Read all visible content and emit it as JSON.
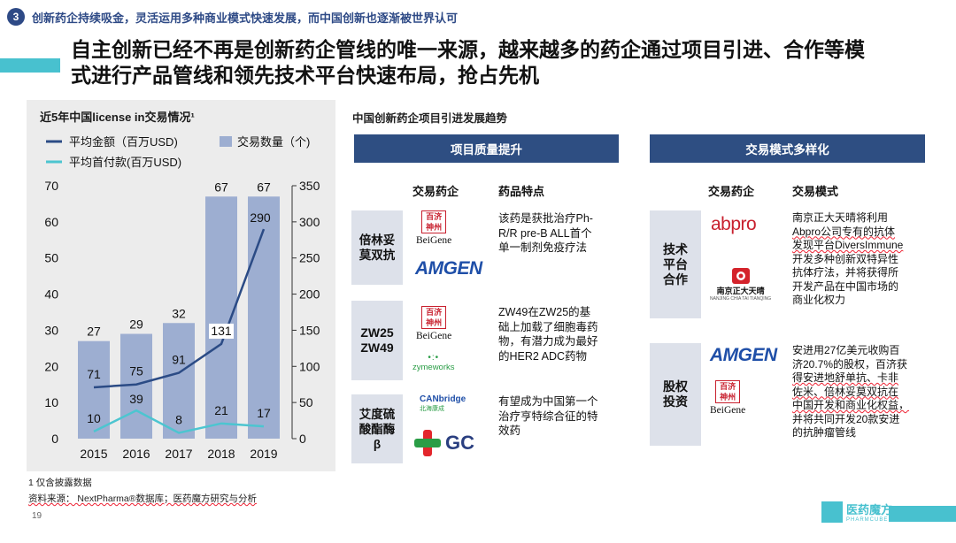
{
  "section": {
    "number": "3",
    "text": "创新药企持续吸金，灵活运用多种商业模式快速发展，而中国创新也逐渐被世界认可"
  },
  "main_title": {
    "line1": "自主创新已经不再是创新药企管线的唯一来源，越来越多的药企通过项目引进、合作等模",
    "line2": "式进行产品管线和领先技术平台快速布局，抢占先机"
  },
  "chart_data": {
    "type": "bar",
    "title": "近5年中国license in交易情况¹",
    "categories": [
      "2015",
      "2016",
      "2017",
      "2018",
      "2019"
    ],
    "ylim_left": [
      0,
      70
    ],
    "ylim_right": [
      0,
      350
    ],
    "yticks_left": [
      "0",
      "10",
      "20",
      "30",
      "40",
      "50",
      "60",
      "70"
    ],
    "yticks_right": [
      "0",
      "50",
      "100",
      "150",
      "200",
      "250",
      "300",
      "350"
    ],
    "legend": [
      "平均金额（百万USD)",
      "交易数量（个)",
      "平均首付款(百万USD)"
    ],
    "series": [
      {
        "name": "交易数量（个)",
        "type": "bar",
        "axis": "left",
        "values": [
          27,
          29,
          32,
          67,
          67
        ],
        "color": "#9daed1"
      },
      {
        "name": "平均金额（百万USD)",
        "type": "line",
        "axis": "right",
        "values": [
          71,
          75,
          91,
          131,
          290
        ],
        "color": "#2b4b85"
      },
      {
        "name": "平均首付款(百万USD)",
        "type": "line",
        "axis": "right",
        "values": [
          10,
          39,
          8,
          21,
          17
        ],
        "color": "#4cc5d0"
      }
    ],
    "note": "1 仅含披露数据",
    "source": "资料来源： NextPharma®数据库；医药魔方研究与分析"
  },
  "page_number": "19",
  "trend": {
    "title": "中国创新药企项目引进发展趋势",
    "left_panel": {
      "header": "项目质量提升",
      "col1": "交易药企",
      "col2": "药品特点",
      "rows": [
        {
          "drug": "倍林妥莫双抗",
          "drug_l1": "倍林妥",
          "drug_l2": "莫双抗",
          "logos": [
            "BeiGene",
            "AMGEN"
          ],
          "desc_l1": "该药是获批治疗Ph-",
          "desc_l2": "R/R pre-B ALL首个",
          "desc_l3": "单一制剂免疫疗法"
        },
        {
          "drug_l1": "ZW25",
          "drug_l2": "ZW49",
          "logos": [
            "BeiGene",
            "zymeworks"
          ],
          "desc_l1": "ZW49在ZW25的基",
          "desc_l2": "础上加载了细胞毒药",
          "desc_l3": "物，有潜力成为最好",
          "desc_l4": "的HER2 ADC药物"
        },
        {
          "drug_l1": "艾度硫",
          "drug_l2": "酸酯酶",
          "drug_l3": "β",
          "logos": [
            "CANbridge",
            "GC"
          ],
          "desc_l1": "有望成为中国第一个",
          "desc_l2": "治疗亨特综合征的特",
          "desc_l3": "效药"
        }
      ]
    },
    "right_panel": {
      "header": "交易模式多样化",
      "col1": "交易药企",
      "col2": "交易模式",
      "rows": [
        {
          "mode_l1": "技术",
          "mode_l2": "平台",
          "mode_l3": "合作",
          "logos": [
            "abpro",
            "南京正大天晴"
          ],
          "desc_l1": "南京正大天晴将利用",
          "desc_l2": "Abpro公司专有的抗体",
          "desc_l3": "发现平台DiversImmune",
          "desc_l4": "开发多种创新双特异性",
          "desc_l5": "抗体疗法，并将获得所",
          "desc_l6": "开发产品在中国市场的",
          "desc_l7": "商业化权力"
        },
        {
          "mode_l1": "股权",
          "mode_l2": "投资",
          "logos": [
            "AMGEN",
            "BeiGene"
          ],
          "desc_l1": "安进用27亿美元收购百",
          "desc_l2": "济20.7%的股权，百济获",
          "desc_l3": "得安进地舒单抗、卡非",
          "desc_l4": "佐米、倍林妥莫双抗在",
          "desc_l5": "中国开发和商业化权益，",
          "desc_l6": "并将共同开发20款安进",
          "desc_l7": "的抗肿瘤管线"
        }
      ]
    }
  },
  "logos": {
    "beigene": "BeiGene",
    "beigene_seal_top": "百济",
    "beigene_seal_bottom": "神州",
    "amgen": "AMGEN",
    "zymeworks": "zymeworks",
    "canbridge": "CANbridge",
    "canbridge_cn": "北海康成",
    "gc": "GC",
    "abpro": "abpro",
    "chiatai": "南京正大天晴",
    "chiatai_en": "NANJING CHIA TAI TIANQING"
  },
  "brand": {
    "name": "医药魔方",
    "sub": "PHARMCUBE"
  }
}
